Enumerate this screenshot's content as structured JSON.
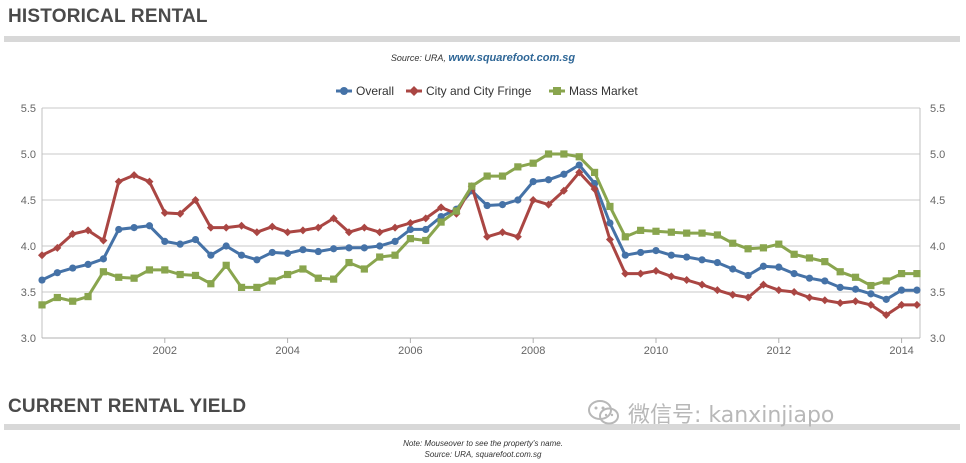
{
  "header": {
    "title": "HISTORICAL RENTAL",
    "source_prefix": "Source: URA,",
    "source_site": "www.squarefoot.com.sg"
  },
  "footer": {
    "title": "CURRENT RENTAL YIELD",
    "note": "Note: Mouseover to see the property's name.",
    "source": "Source: URA, squarefoot.com.sg"
  },
  "watermark": {
    "text": "微信号: kanxinjiapo",
    "icon": "wechat-icon"
  },
  "chart_data": {
    "type": "line",
    "title": "",
    "xlabel": "",
    "ylabel": "",
    "legend_position": "top-center",
    "grid": true,
    "ylim": [
      3.0,
      5.5
    ],
    "xlim": [
      2000.0,
      2014.3
    ],
    "y_ticks": [
      "3.0",
      "3.5",
      "4.0",
      "4.5",
      "5.0",
      "5.5"
    ],
    "x_ticks": [
      {
        "value": 2002,
        "label": "2002"
      },
      {
        "value": 2004,
        "label": "2004"
      },
      {
        "value": 2006,
        "label": "2006"
      },
      {
        "value": 2008,
        "label": "2008"
      },
      {
        "value": 2010,
        "label": "2010"
      },
      {
        "value": 2012,
        "label": "2012"
      },
      {
        "value": 2014,
        "label": "2014"
      }
    ],
    "x": [
      2000.0,
      2000.25,
      2000.5,
      2000.75,
      2001.0,
      2001.25,
      2001.5,
      2001.75,
      2002.0,
      2002.25,
      2002.5,
      2002.75,
      2003.0,
      2003.25,
      2003.5,
      2003.75,
      2004.0,
      2004.25,
      2004.5,
      2004.75,
      2005.0,
      2005.25,
      2005.5,
      2005.75,
      2006.0,
      2006.25,
      2006.5,
      2006.75,
      2007.0,
      2007.25,
      2007.5,
      2007.75,
      2008.0,
      2008.25,
      2008.5,
      2008.75,
      2009.0,
      2009.25,
      2009.5,
      2009.75,
      2010.0,
      2010.25,
      2010.5,
      2010.75,
      2011.0,
      2011.25,
      2011.5,
      2011.75,
      2012.0,
      2012.25,
      2012.5,
      2012.75,
      2013.0,
      2013.25,
      2013.5,
      2013.75,
      2014.0,
      2014.25
    ],
    "series": [
      {
        "name": "Overall",
        "color": "#4572a7",
        "marker": "circle",
        "values": [
          3.63,
          3.71,
          3.76,
          3.8,
          3.86,
          4.18,
          4.2,
          4.22,
          4.05,
          4.02,
          4.07,
          3.9,
          4.0,
          3.9,
          3.85,
          3.93,
          3.92,
          3.96,
          3.94,
          3.97,
          3.98,
          3.98,
          4.0,
          4.05,
          4.18,
          4.18,
          4.32,
          4.4,
          4.6,
          4.44,
          4.45,
          4.5,
          4.7,
          4.72,
          4.78,
          4.88,
          4.68,
          4.25,
          3.9,
          3.93,
          3.95,
          3.9,
          3.88,
          3.85,
          3.82,
          3.75,
          3.68,
          3.78,
          3.77,
          3.7,
          3.65,
          3.62,
          3.55,
          3.53,
          3.48,
          3.42,
          3.52,
          3.52
        ]
      },
      {
        "name": "City and City Fringe",
        "color": "#aa4643",
        "marker": "diamond",
        "values": [
          3.9,
          3.98,
          4.13,
          4.17,
          4.06,
          4.7,
          4.77,
          4.7,
          4.36,
          4.35,
          4.5,
          4.2,
          4.2,
          4.22,
          4.15,
          4.21,
          4.15,
          4.17,
          4.2,
          4.3,
          4.15,
          4.2,
          4.15,
          4.2,
          4.25,
          4.3,
          4.42,
          4.35,
          4.65,
          4.1,
          4.15,
          4.1,
          4.5,
          4.45,
          4.6,
          4.8,
          4.62,
          4.07,
          3.7,
          3.7,
          3.73,
          3.67,
          3.63,
          3.58,
          3.52,
          3.47,
          3.44,
          3.58,
          3.52,
          3.5,
          3.44,
          3.41,
          3.38,
          3.4,
          3.36,
          3.25,
          3.36,
          3.36
        ]
      },
      {
        "name": "Mass Market",
        "color": "#89a54e",
        "marker": "square",
        "values": [
          3.36,
          3.44,
          3.4,
          3.45,
          3.72,
          3.66,
          3.65,
          3.74,
          3.74,
          3.69,
          3.68,
          3.59,
          3.79,
          3.55,
          3.55,
          3.62,
          3.69,
          3.75,
          3.65,
          3.64,
          3.82,
          3.75,
          3.88,
          3.9,
          4.08,
          4.06,
          4.26,
          4.38,
          4.65,
          4.76,
          4.76,
          4.86,
          4.9,
          5.0,
          5.0,
          4.97,
          4.8,
          4.43,
          4.1,
          4.17,
          4.16,
          4.15,
          4.14,
          4.14,
          4.12,
          4.03,
          3.97,
          3.98,
          4.02,
          3.91,
          3.87,
          3.83,
          3.72,
          3.66,
          3.57,
          3.62,
          3.7,
          3.7
        ]
      }
    ]
  }
}
